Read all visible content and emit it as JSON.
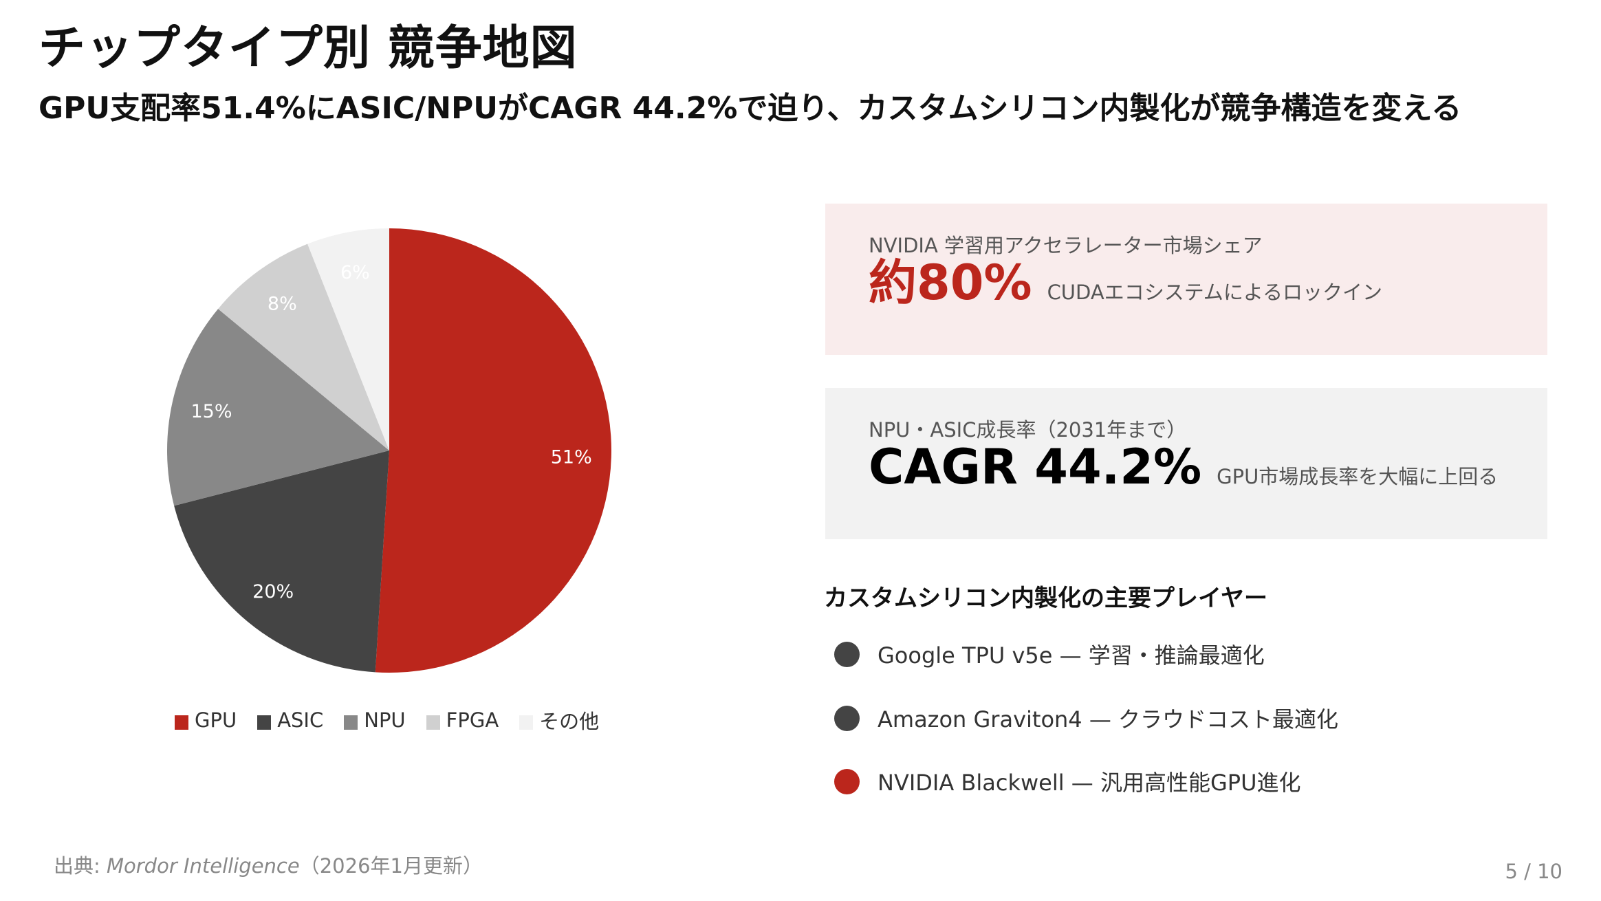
{
  "header": {
    "title": "チップタイプ別 競争地図",
    "subtitle": "GPU支配率51.4%にASIC/NPUがCAGR 44.2%で迫り、カスタムシリコン内製化が競争構造を変える"
  },
  "colors": {
    "accent_red": "#bb261c",
    "dark_gray": "#444444",
    "mid_gray": "#888888",
    "light_gray": "#d0d0d0",
    "lightest_gray": "#f2f2f2",
    "card_red_bg": "#f9ecec",
    "card_gray_bg": "#f2f2f2"
  },
  "chart_data": {
    "type": "pie",
    "title": "",
    "categories": [
      "GPU",
      "ASIC",
      "NPU",
      "FPGA",
      "その他"
    ],
    "values": [
      51,
      20,
      15,
      8,
      6
    ],
    "labels": [
      "51%",
      "20%",
      "15%",
      "8%",
      "6%"
    ],
    "colors": [
      "#bb261c",
      "#444444",
      "#888888",
      "#d0d0d0",
      "#f2f2f2"
    ],
    "start_angle": "12 o'clock, clockwise",
    "legend_position": "bottom"
  },
  "legend": [
    {
      "label": "GPU",
      "color": "#bb261c"
    },
    {
      "label": "ASIC",
      "color": "#444444"
    },
    {
      "label": "NPU",
      "color": "#888888"
    },
    {
      "label": "FPGA",
      "color": "#d0d0d0"
    },
    {
      "label": "その他",
      "color": "#f2f2f2"
    }
  ],
  "cards": [
    {
      "label": "NVIDIA 学習用アクセラレーター市場シェア",
      "value": "約80%",
      "note": "CUDAエコシステムによるロックイン",
      "value_color": "#bb261c"
    },
    {
      "label": "NPU・ASIC成長率（2031年まで）",
      "value": "CAGR 44.2%",
      "note": "GPU市場成長率を大幅に上回る",
      "value_color": "#000000"
    }
  ],
  "players": {
    "heading": "カスタムシリコン内製化の主要プレイヤー",
    "items": [
      {
        "text": "Google TPU v5e  —  学習・推論最適化",
        "dot_color": "#444444"
      },
      {
        "text": "Amazon Graviton4  —  クラウドコスト最適化",
        "dot_color": "#444444"
      },
      {
        "text": "NVIDIA Blackwell  —  汎用高性能GPU進化",
        "dot_color": "#bb261c"
      }
    ]
  },
  "footer": {
    "source_prefix": "出典: ",
    "source_name": "Mordor Intelligence",
    "source_suffix": "（2026年1月更新）",
    "page": "5 / 10"
  }
}
